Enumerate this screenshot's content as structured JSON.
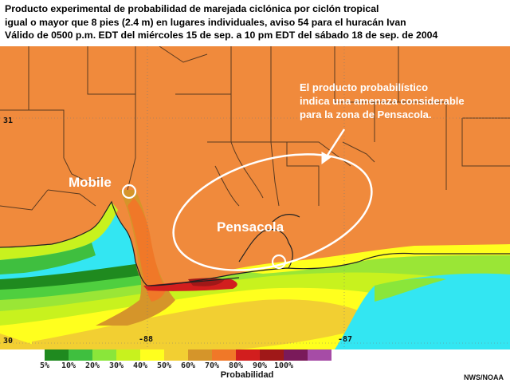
{
  "title": {
    "line1": "Producto experimental de probabilidad de marejada ciclónica por ciclón tropical",
    "line2": "igual o mayor que 8 pies (2.4 m) en lugares individuales, aviso 54 para el huracán Ivan",
    "line3": "Válido de 0500 p.m. EDT del miércoles 15 de sep. a 10 pm EDT del sábado 18 de sep. de 2004"
  },
  "map": {
    "cities": [
      "Mobile",
      "Pensacola"
    ],
    "annotation": [
      "El producto probabilístico",
      "indica una amenaza considerable",
      "para la zona de Pensacola."
    ],
    "lat_labels": [
      "31",
      "30"
    ],
    "lon_labels": [
      "-88",
      "-87"
    ]
  },
  "legend": {
    "title": "Probabilidad",
    "ticks": [
      "5%",
      "10%",
      "20%",
      "30%",
      "40%",
      "50%",
      "60%",
      "70%",
      "80%",
      "90%",
      "100%"
    ],
    "colors": [
      "#1f8a1f",
      "#3fbf3f",
      "#8ae63a",
      "#c8f21e",
      "#ffff1e",
      "#f2cf32",
      "#d5952a",
      "#f07828",
      "#d21e1e",
      "#a01818",
      "#7a1a5a",
      "#a64ca6"
    ],
    "credit": "NWS/NOAA"
  }
}
